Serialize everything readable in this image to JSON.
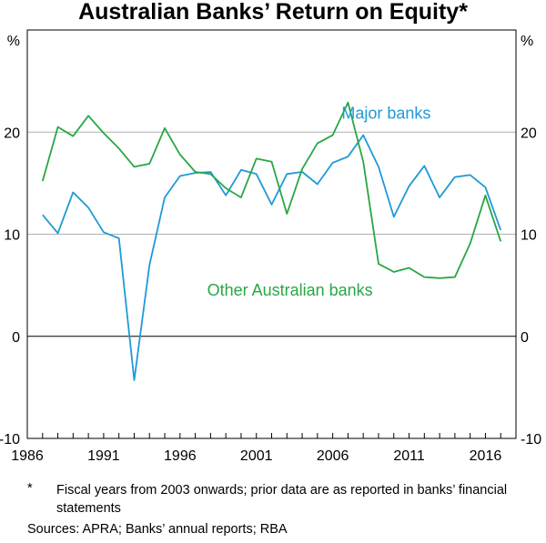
{
  "chart_data": {
    "type": "line",
    "title": "Australian Banks’ Return on Equity*",
    "unit_left": "%",
    "unit_right": "%",
    "ylim": [
      -10,
      30
    ],
    "y_ticks": [
      -10,
      0,
      10,
      20
    ],
    "y_tick_labels": [
      "-10",
      "0",
      "10",
      "20"
    ],
    "xlim": [
      1986,
      2018
    ],
    "x_ticks": [
      1986,
      1991,
      1996,
      2001,
      2006,
      2011,
      2016
    ],
    "x_tick_labels": [
      "1986",
      "1991",
      "1996",
      "2001",
      "2006",
      "2011",
      "2016"
    ],
    "gridlines": [
      10,
      20
    ],
    "zero_line": 0,
    "x": [
      1987,
      1988,
      1989,
      1990,
      1991,
      1992,
      1993,
      1994,
      1995,
      1996,
      1997,
      1998,
      1999,
      2000,
      2001,
      2002,
      2003,
      2004,
      2005,
      2006,
      2007,
      2008,
      2009,
      2010,
      2011,
      2012,
      2013,
      2014,
      2015,
      2016,
      2017
    ],
    "series": [
      {
        "name": "Major banks",
        "color": "#1f9ad6",
        "values": [
          11.9,
          10.1,
          14.1,
          12.6,
          10.2,
          9.6,
          -4.3,
          7.0,
          13.6,
          15.7,
          16.0,
          16.1,
          13.8,
          16.3,
          15.9,
          12.9,
          15.9,
          16.1,
          14.9,
          17.0,
          17.6,
          19.7,
          16.6,
          11.7,
          14.7,
          16.7,
          13.6,
          15.6,
          15.8,
          14.6,
          10.4
        ],
        "label_year": 2009.5,
        "label_value": 21.3
      },
      {
        "name": "Other Australian banks",
        "color": "#28a745",
        "values": [
          15.2,
          20.5,
          19.6,
          21.6,
          19.9,
          18.4,
          16.6,
          16.9,
          20.4,
          17.8,
          16.1,
          15.9,
          14.5,
          13.6,
          17.4,
          17.1,
          12.0,
          16.4,
          18.9,
          19.7,
          22.9,
          17.1,
          7.1,
          6.3,
          6.7,
          5.8,
          5.7,
          5.8,
          9.1,
          13.8,
          9.3
        ],
        "label_year": 2003.2,
        "label_value": 4.0
      }
    ],
    "footnote_mark": "*",
    "footnote": "Fiscal years from 2003 onwards; prior data are as reported in banks’ financial statements",
    "sources": "Sources: APRA; Banks’ annual reports; RBA"
  }
}
